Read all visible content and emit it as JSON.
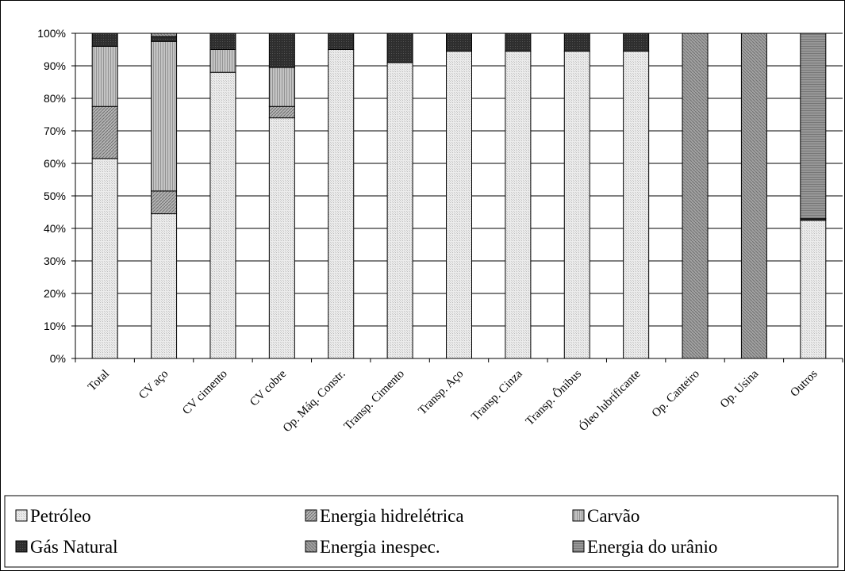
{
  "chart_data": {
    "type": "bar",
    "stacked": "percent",
    "title": "",
    "xlabel": "",
    "ylabel": "",
    "ylim": [
      0,
      100
    ],
    "yticks": [
      "0%",
      "10%",
      "20%",
      "30%",
      "40%",
      "50%",
      "60%",
      "70%",
      "80%",
      "90%",
      "100%"
    ],
    "grid": true,
    "legend_position": "bottom",
    "categories": [
      "Total",
      "CV aço",
      "CV cimento",
      "CV cobre",
      "Op. Máq. Constr.",
      "Transp. Cimento",
      "Transp. Aço",
      "Transp. Cinza",
      "Transp. Ônibus",
      "Óleo lubrificante",
      "Op. Canteiro",
      "Op. Usina",
      "Outros"
    ],
    "series": [
      {
        "name": "Petróleo",
        "color": "#e3e3e3",
        "values": [
          61.5,
          44.5,
          88,
          74,
          95,
          91,
          94.5,
          94.5,
          94.5,
          94.5,
          0,
          0,
          42.5
        ]
      },
      {
        "name": "Energia hidrelétrica",
        "color": "#a6a6a6",
        "values": [
          16,
          7,
          0,
          3.5,
          0,
          0,
          0,
          0,
          0,
          0,
          0,
          0,
          0
        ]
      },
      {
        "name": "Carvão",
        "color": "#bdbdbd",
        "values": [
          18.5,
          46,
          7,
          12,
          0,
          0,
          0,
          0,
          0,
          0,
          0,
          0,
          0
        ]
      },
      {
        "name": "Gás Natural",
        "color": "#3a3a3a",
        "values": [
          4,
          1.5,
          5,
          10.5,
          5,
          9,
          5.5,
          5.5,
          5.5,
          5.5,
          0,
          0,
          0.5
        ]
      },
      {
        "name": "Energia inespec.",
        "color": "#9a9a9a",
        "values": [
          0,
          1,
          0,
          0,
          0,
          0,
          0,
          0,
          0,
          0,
          100,
          100,
          0
        ]
      },
      {
        "name": "Energia do urânio",
        "color": "#8c8c8c",
        "values": [
          0,
          0,
          0,
          0,
          0,
          0,
          0,
          0,
          0,
          0,
          0,
          0,
          57
        ]
      }
    ]
  }
}
